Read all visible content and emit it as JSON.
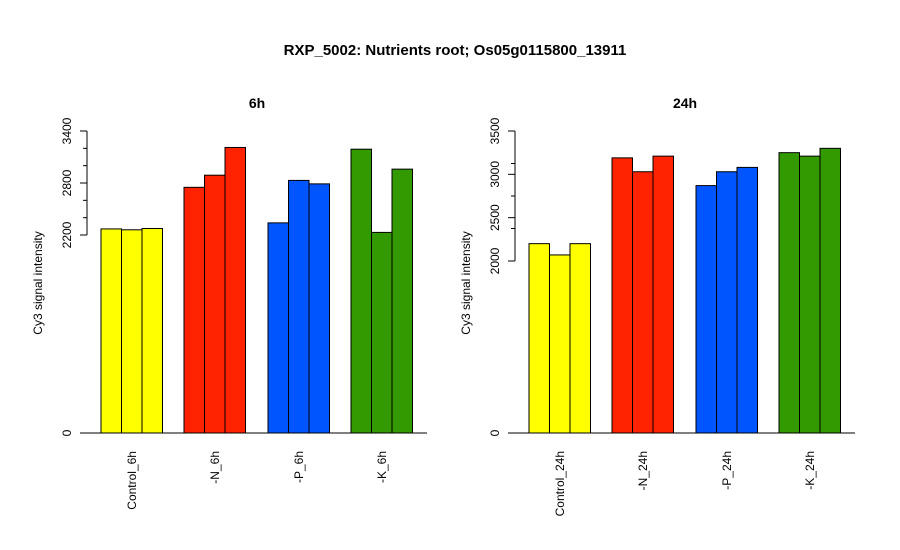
{
  "title": "RXP_5002: Nutrients root; Os05g0115800_13911",
  "chart_data": [
    {
      "type": "bar",
      "title": "6h",
      "ylabel": "Cy3 signal intensity",
      "xlabel": "",
      "ylim": [
        0,
        3400
      ],
      "scale_note": "broken y-axis: 0 to 2200 compressed, ticks at 0, 2200, 2800, 3400",
      "yticks": [
        0,
        2200,
        2800,
        3400
      ],
      "ytick_labels": [
        "0",
        "2200",
        "2800",
        "3400"
      ],
      "categories": [
        "Control_6h",
        "-N_6h",
        "-P_6h",
        "-K_6h"
      ],
      "colors": [
        "#ffff00",
        "#ff2200",
        "#0055ff",
        "#339900"
      ],
      "values": [
        [
          2270,
          2260,
          2275
        ],
        [
          2750,
          2890,
          3210
        ],
        [
          2340,
          2830,
          2790
        ],
        [
          3190,
          2230,
          2960
        ]
      ]
    },
    {
      "type": "bar",
      "title": "24h",
      "ylabel": "Cy3 signal intensity",
      "xlabel": "",
      "ylim": [
        0,
        3500
      ],
      "scale_note": "broken y-axis: 0 to 2000 compressed, ticks at 0, 2000, 2500, 3000, 3500",
      "yticks": [
        0,
        2000,
        2500,
        3000,
        3500
      ],
      "ytick_labels": [
        "0",
        "2000",
        "2500",
        "3000",
        "3500"
      ],
      "categories": [
        "Control_24h",
        "-N_24h",
        "-P_24h",
        "-K_24h"
      ],
      "colors": [
        "#ffff00",
        "#ff2200",
        "#0055ff",
        "#339900"
      ],
      "values": [
        [
          2200,
          2070,
          2200
        ],
        [
          3190,
          3030,
          3210
        ],
        [
          2870,
          3030,
          3080
        ],
        [
          3250,
          3210,
          3300
        ]
      ]
    }
  ]
}
